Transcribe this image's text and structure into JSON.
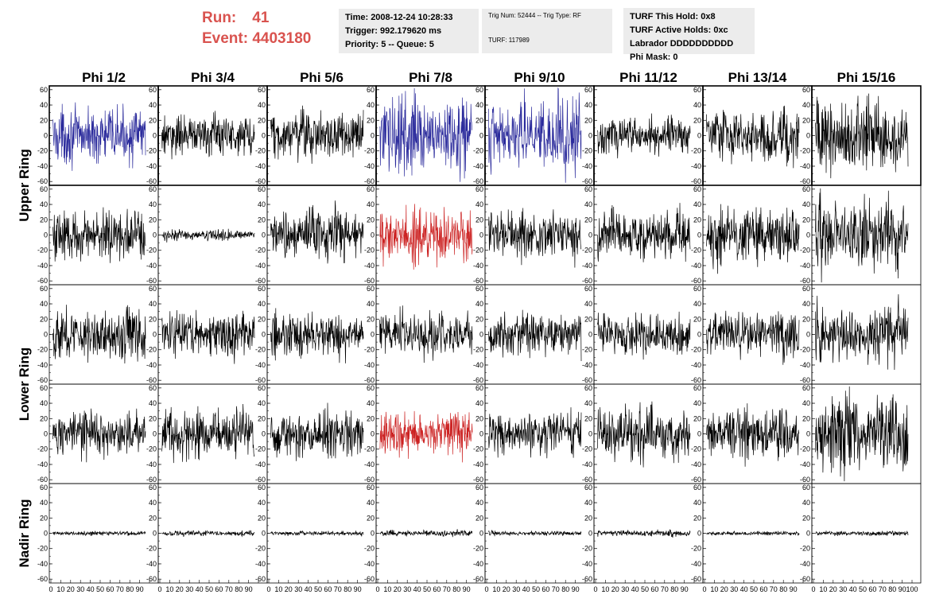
{
  "header": {
    "run_label": "Run:",
    "run_value": "41",
    "event_label": "Event:",
    "event_value": "4403180",
    "box1": {
      "time": "Time: 2008-12-24 10:28:33",
      "trigger": "Trigger: 992.179620 ms",
      "priority": "Priority: 5 -- Queue: 5"
    },
    "box2": {
      "trig": "Trig Num: 52444 -- Trig Type: RF",
      "turf": "TURF: 117989"
    },
    "box3": {
      "this_hold": "TURF This Hold: 0x8",
      "active_holds": "TURF Active Holds: 0xc",
      "labrador": "Labrador DDDDDDDDDD",
      "phi_mask": "Phi Mask: 0"
    }
  },
  "columns": [
    "Phi 1/2",
    "Phi 3/4",
    "Phi 5/6",
    "Phi 7/8",
    "Phi 9/10",
    "Phi 11/12",
    "Phi 13/14",
    "Phi 15/16"
  ],
  "ring_labels": [
    {
      "label": "Upper Ring",
      "rows": [
        0,
        1
      ]
    },
    {
      "label": "Lower Ring",
      "rows": [
        2,
        3
      ]
    },
    {
      "label": "Nadir Ring",
      "rows": [
        4
      ]
    }
  ],
  "y_ticks": [
    "60",
    "40",
    "20",
    "0",
    "-20",
    "-40",
    "-60"
  ],
  "x_tick_labels": [
    "0",
    "10",
    "20",
    "30",
    "40",
    "50",
    "60",
    "70",
    "80",
    "90",
    "100"
  ],
  "chart_data": {
    "type": "line",
    "title": "",
    "xlabel": "",
    "ylabel": "",
    "xlim": [
      0,
      100
    ],
    "ylim": [
      -65,
      65
    ],
    "colors": {
      "normal": "#000000",
      "upper_trig": "#2b2b9c",
      "lower_trig": "#cc2222"
    },
    "amplitudes": [
      [
        16,
        12,
        14,
        22,
        22,
        11,
        16,
        22
      ],
      [
        15,
        3,
        16,
        16,
        14,
        14,
        16,
        22
      ],
      [
        15,
        13,
        13,
        14,
        12,
        12,
        13,
        17
      ],
      [
        13,
        15,
        14,
        14,
        13,
        16,
        15,
        22
      ],
      [
        1.4,
        1.6,
        1.3,
        1.8,
        1.3,
        1.9,
        1.2,
        1.5
      ]
    ],
    "trace_colors": [
      [
        "upper_trig",
        "normal",
        "normal",
        "upper_trig",
        "upper_trig",
        "normal",
        "normal",
        "normal"
      ],
      [
        "normal",
        "normal",
        "normal",
        "lower_trig",
        "normal",
        "normal",
        "normal",
        "normal"
      ],
      [
        "normal",
        "normal",
        "normal",
        "normal",
        "normal",
        "normal",
        "normal",
        "normal"
      ],
      [
        "normal",
        "normal",
        "normal",
        "lower_trig",
        "normal",
        "normal",
        "normal",
        "normal"
      ],
      [
        "normal",
        "normal",
        "normal",
        "normal",
        "normal",
        "normal",
        "normal",
        "normal"
      ]
    ]
  }
}
